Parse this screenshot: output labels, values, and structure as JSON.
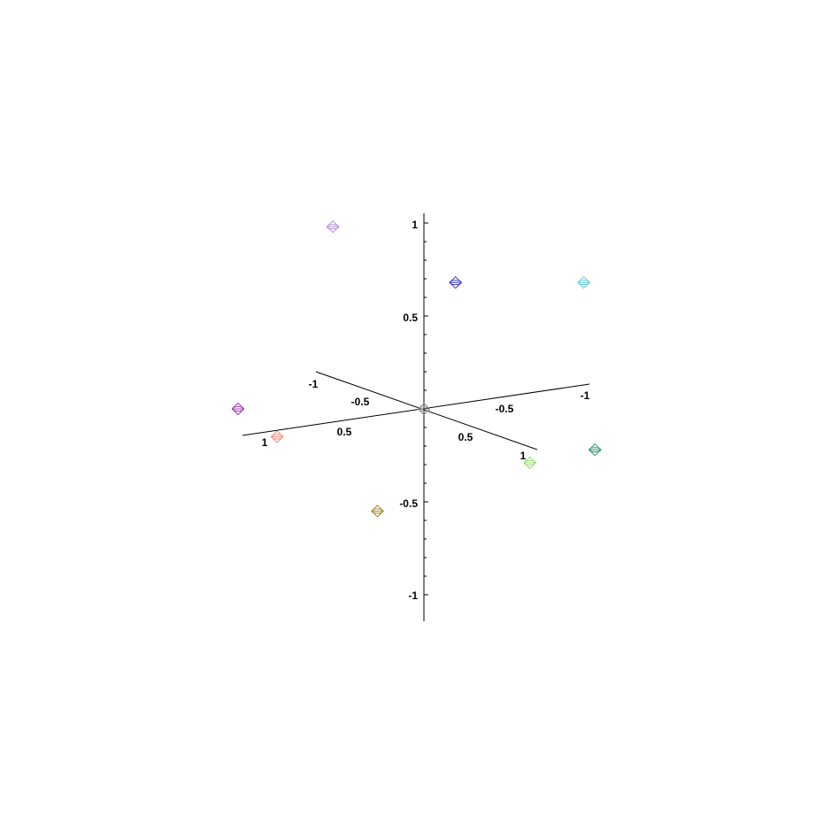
{
  "chart_data": {
    "type": "scatter",
    "projection": "3d",
    "title": "",
    "xlabel": "",
    "ylabel": "",
    "zlabel": "",
    "axis_ticks": {
      "vertical": [
        "1",
        "0.5",
        "-0.5",
        "-1"
      ],
      "axis_a": [
        "-1",
        "-0.5",
        "0.5",
        "1"
      ],
      "axis_b": [
        "-1",
        "-0.5",
        "0.5",
        "1"
      ]
    },
    "points": [
      {
        "name": "point-lavender",
        "color": "#b58ee0",
        "x": -0.49,
        "y": 0.98
      },
      {
        "name": "point-blue",
        "color": "#3a3ac0",
        "x": 0.17,
        "y": 0.68
      },
      {
        "name": "point-cyan",
        "color": "#5ccce0",
        "x": 0.86,
        "y": 0.68
      },
      {
        "name": "point-purple",
        "color": "#a040b0",
        "x": -1.0,
        "y": 0.0
      },
      {
        "name": "point-origin",
        "color": "#909090",
        "x": 0.0,
        "y": 0.0
      },
      {
        "name": "point-salmon",
        "color": "#f09080",
        "x": -0.79,
        "y": -0.15
      },
      {
        "name": "point-teal",
        "color": "#2a9070",
        "x": 0.92,
        "y": -0.22
      },
      {
        "name": "point-lightgreen",
        "color": "#90e070",
        "x": 0.57,
        "y": -0.29
      },
      {
        "name": "point-olive",
        "color": "#a08a30",
        "x": -0.25,
        "y": -0.55
      }
    ]
  }
}
